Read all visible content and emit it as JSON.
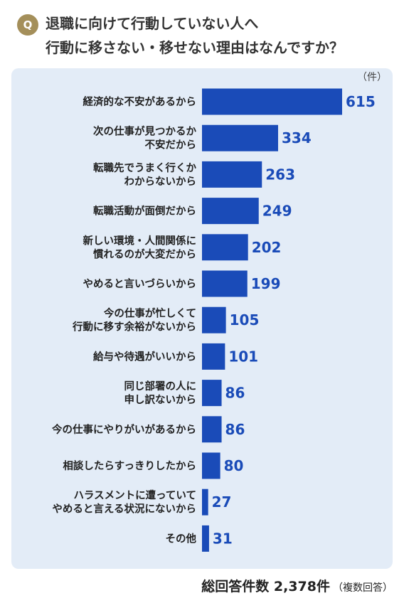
{
  "question": {
    "badge": "Q",
    "line1": "退職に向けて行動していない人へ",
    "line2": "行動に移さない・移せない理由はなんですか？"
  },
  "chart_data": {
    "type": "bar",
    "orientation": "horizontal",
    "unit": "（件）",
    "bar_color": "#1a4bb8",
    "value_color": "#1a4bb8",
    "categories": [
      [
        "経済的な不安があるから"
      ],
      [
        "次の仕事が見つかるか",
        "不安だから"
      ],
      [
        "転職先でうまく行くか",
        "わからないから"
      ],
      [
        "転職活動が面倒だから"
      ],
      [
        "新しい環境・人間関係に",
        "慣れるのが大変だから"
      ],
      [
        "やめると言いづらいから"
      ],
      [
        "今の仕事が忙しくて",
        "行動に移す余裕がないから"
      ],
      [
        "給与や待遇がいいから"
      ],
      [
        "同じ部署の人に",
        "申し訳ないから"
      ],
      [
        "今の仕事にやりがいがあるから"
      ],
      [
        "相談したらすっきりしたから"
      ],
      [
        "ハラスメントに遭っていて",
        "やめると言える状況にないから"
      ],
      [
        "その他"
      ]
    ],
    "values": [
      615,
      334,
      263,
      249,
      202,
      199,
      105,
      101,
      86,
      86,
      80,
      27,
      31
    ]
  },
  "footer": {
    "total": "総回答件数 2,378件",
    "note": "（複数回答）"
  }
}
